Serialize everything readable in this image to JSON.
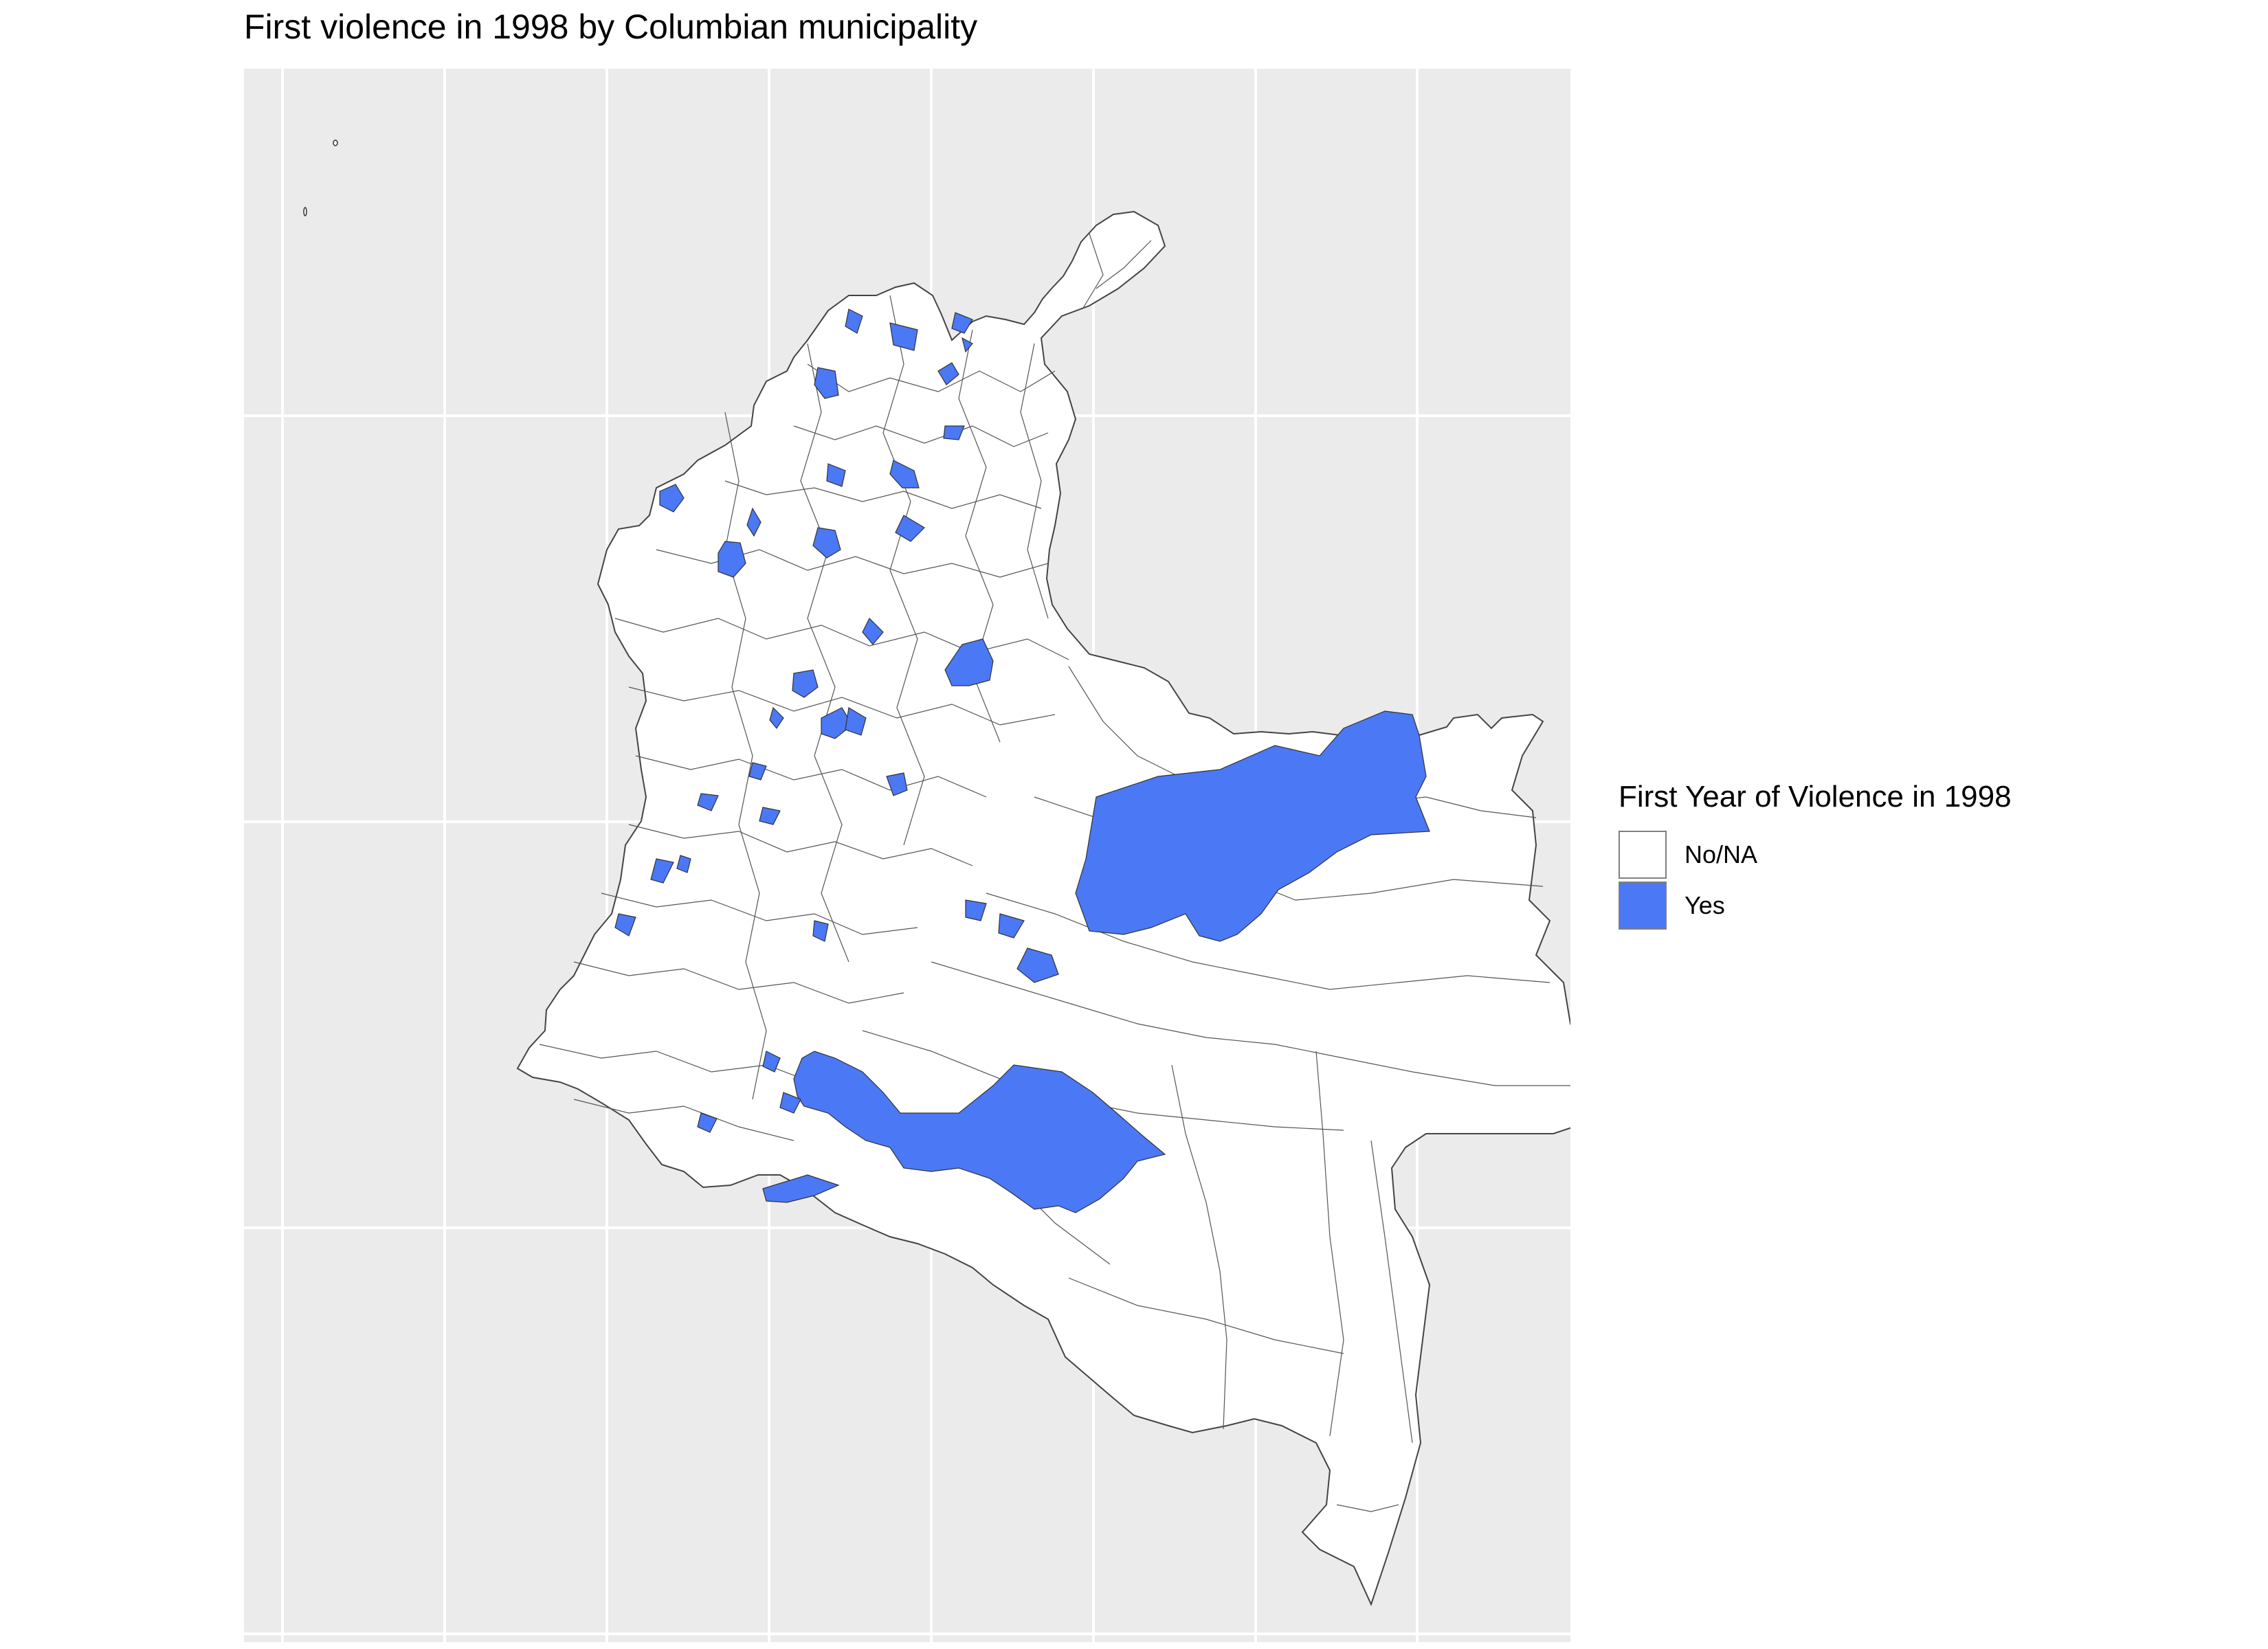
{
  "title": "First violence in 1998 by Columbian municipality",
  "legend": {
    "title": "First Year of Violence in 1998",
    "items": [
      {
        "label": "No/NA",
        "color": "#ffffff"
      },
      {
        "label": "Yes",
        "color": "#4b78f5"
      }
    ]
  },
  "map": {
    "background": "#ebebeb",
    "gridline_color": "#ffffff",
    "land_color": "#ffffff",
    "border_color": "#555555"
  }
}
